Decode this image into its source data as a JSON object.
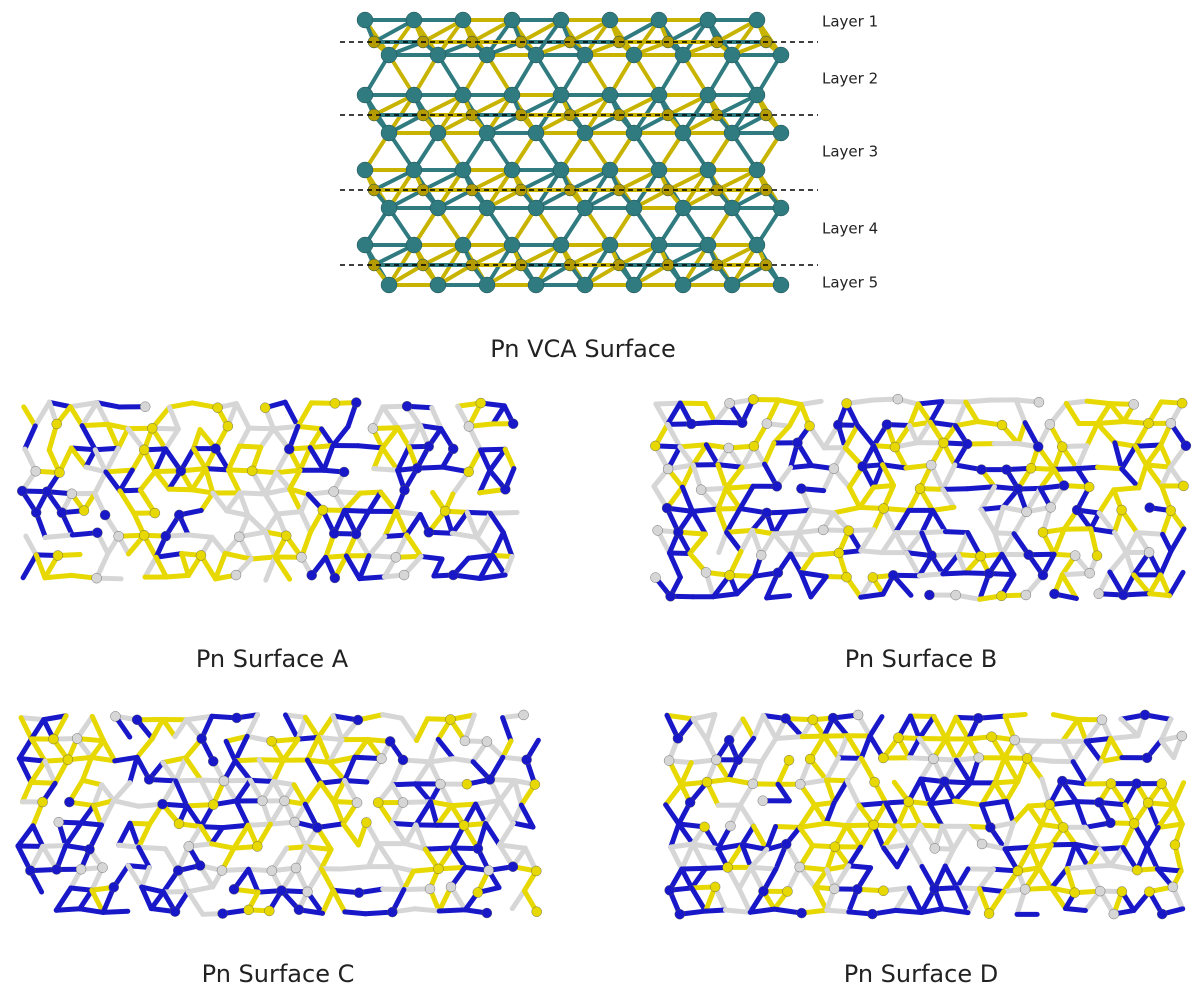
{
  "figure": {
    "top": {
      "layers": [
        "Layer 1",
        "Layer 2",
        "Layer 3",
        "Layer 4",
        "Layer 5"
      ],
      "caption": "Pn VCA Surface"
    },
    "panels": [
      {
        "caption": "Pn Surface A"
      },
      {
        "caption": "Pn Surface B"
      },
      {
        "caption": "Pn Surface C"
      },
      {
        "caption": "Pn Surface D"
      }
    ]
  }
}
